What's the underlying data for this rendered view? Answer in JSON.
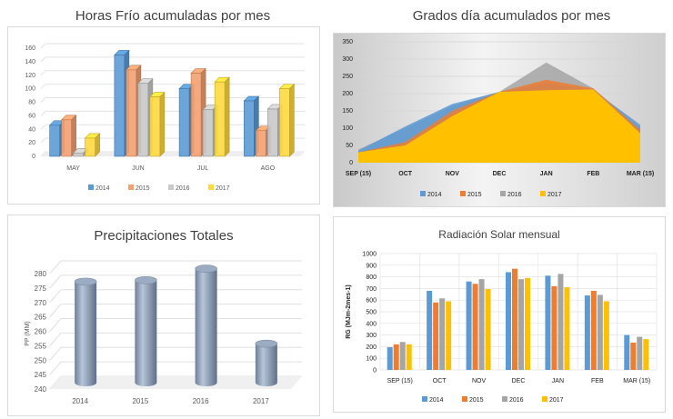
{
  "chart_data": [
    {
      "type": "bar",
      "title": "Horas Frío acumuladas por mes",
      "categories": [
        "MAY",
        "JUN",
        "JUL",
        "AGO"
      ],
      "ylim": [
        0,
        160
      ],
      "yticks": [
        0,
        20,
        40,
        60,
        80,
        100,
        120,
        140,
        160
      ],
      "legend_position": "bottom",
      "series": [
        {
          "name": "2014",
          "color": "#5B9BD5",
          "values": [
            46,
            150,
            100,
            82
          ]
        },
        {
          "name": "2015",
          "color": "#F4A070",
          "values": [
            54,
            128,
            123,
            38
          ]
        },
        {
          "name": "2016",
          "color": "#C9C9C9",
          "values": [
            5,
            108,
            69,
            70
          ]
        },
        {
          "name": "2017",
          "color": "#FFD93F",
          "values": [
            27,
            88,
            110,
            100
          ]
        }
      ]
    },
    {
      "type": "area",
      "title": "Grados día acumulados por mes",
      "categories": [
        "SEP (15)",
        "OCT",
        "NOV",
        "DEC",
        "JAN",
        "FEB",
        "MAR (15)"
      ],
      "ylim": [
        0,
        350
      ],
      "yticks": [
        0,
        50,
        100,
        150,
        200,
        250,
        300,
        350
      ],
      "legend_position": "bottom",
      "series": [
        {
          "name": "2014",
          "color": "#5B9BD5",
          "values": [
            35,
            105,
            170,
            205,
            230,
            210,
            110
          ]
        },
        {
          "name": "2015",
          "color": "#ED7D31",
          "values": [
            30,
            60,
            150,
            205,
            240,
            215,
            95
          ]
        },
        {
          "name": "2016",
          "color": "#A5A5A5",
          "values": [
            38,
            100,
            165,
            205,
            290,
            215,
            100
          ]
        },
        {
          "name": "2017",
          "color": "#FFC000",
          "values": [
            30,
            50,
            135,
            205,
            210,
            212,
            85
          ]
        }
      ]
    },
    {
      "type": "bar",
      "title": "Precipitaciones Totales",
      "ylabel": "PP (MM)",
      "categories": [
        "2014",
        "2015",
        "2016",
        "2017"
      ],
      "values": [
        275,
        275.5,
        279.5,
        253.5
      ],
      "ylim": [
        240,
        280
      ],
      "yticks": [
        240,
        245,
        250,
        255,
        260,
        265,
        270,
        275,
        280
      ],
      "color": "#8FA3BD"
    },
    {
      "type": "bar",
      "title": "Radiación Solar mensual",
      "ylabel": "RG (MJm-2mes-1)",
      "categories": [
        "SEP (15)",
        "OCT",
        "NOV",
        "DEC",
        "JAN",
        "FEB",
        "MAR (15)"
      ],
      "ylim": [
        0,
        1000
      ],
      "yticks": [
        0,
        100,
        200,
        300,
        400,
        500,
        600,
        700,
        800,
        900,
        1000
      ],
      "legend_position": "bottom",
      "series": [
        {
          "name": "2014",
          "color": "#5B9BD5",
          "values": [
            195,
            680,
            760,
            840,
            810,
            640,
            300
          ]
        },
        {
          "name": "2015",
          "color": "#ED7D31",
          "values": [
            220,
            580,
            740,
            870,
            720,
            680,
            235
          ]
        },
        {
          "name": "2016",
          "color": "#A5A5A5",
          "values": [
            240,
            615,
            780,
            780,
            825,
            645,
            285
          ]
        },
        {
          "name": "2017",
          "color": "#FFC000",
          "values": [
            220,
            590,
            695,
            790,
            710,
            590,
            265
          ]
        }
      ]
    }
  ]
}
